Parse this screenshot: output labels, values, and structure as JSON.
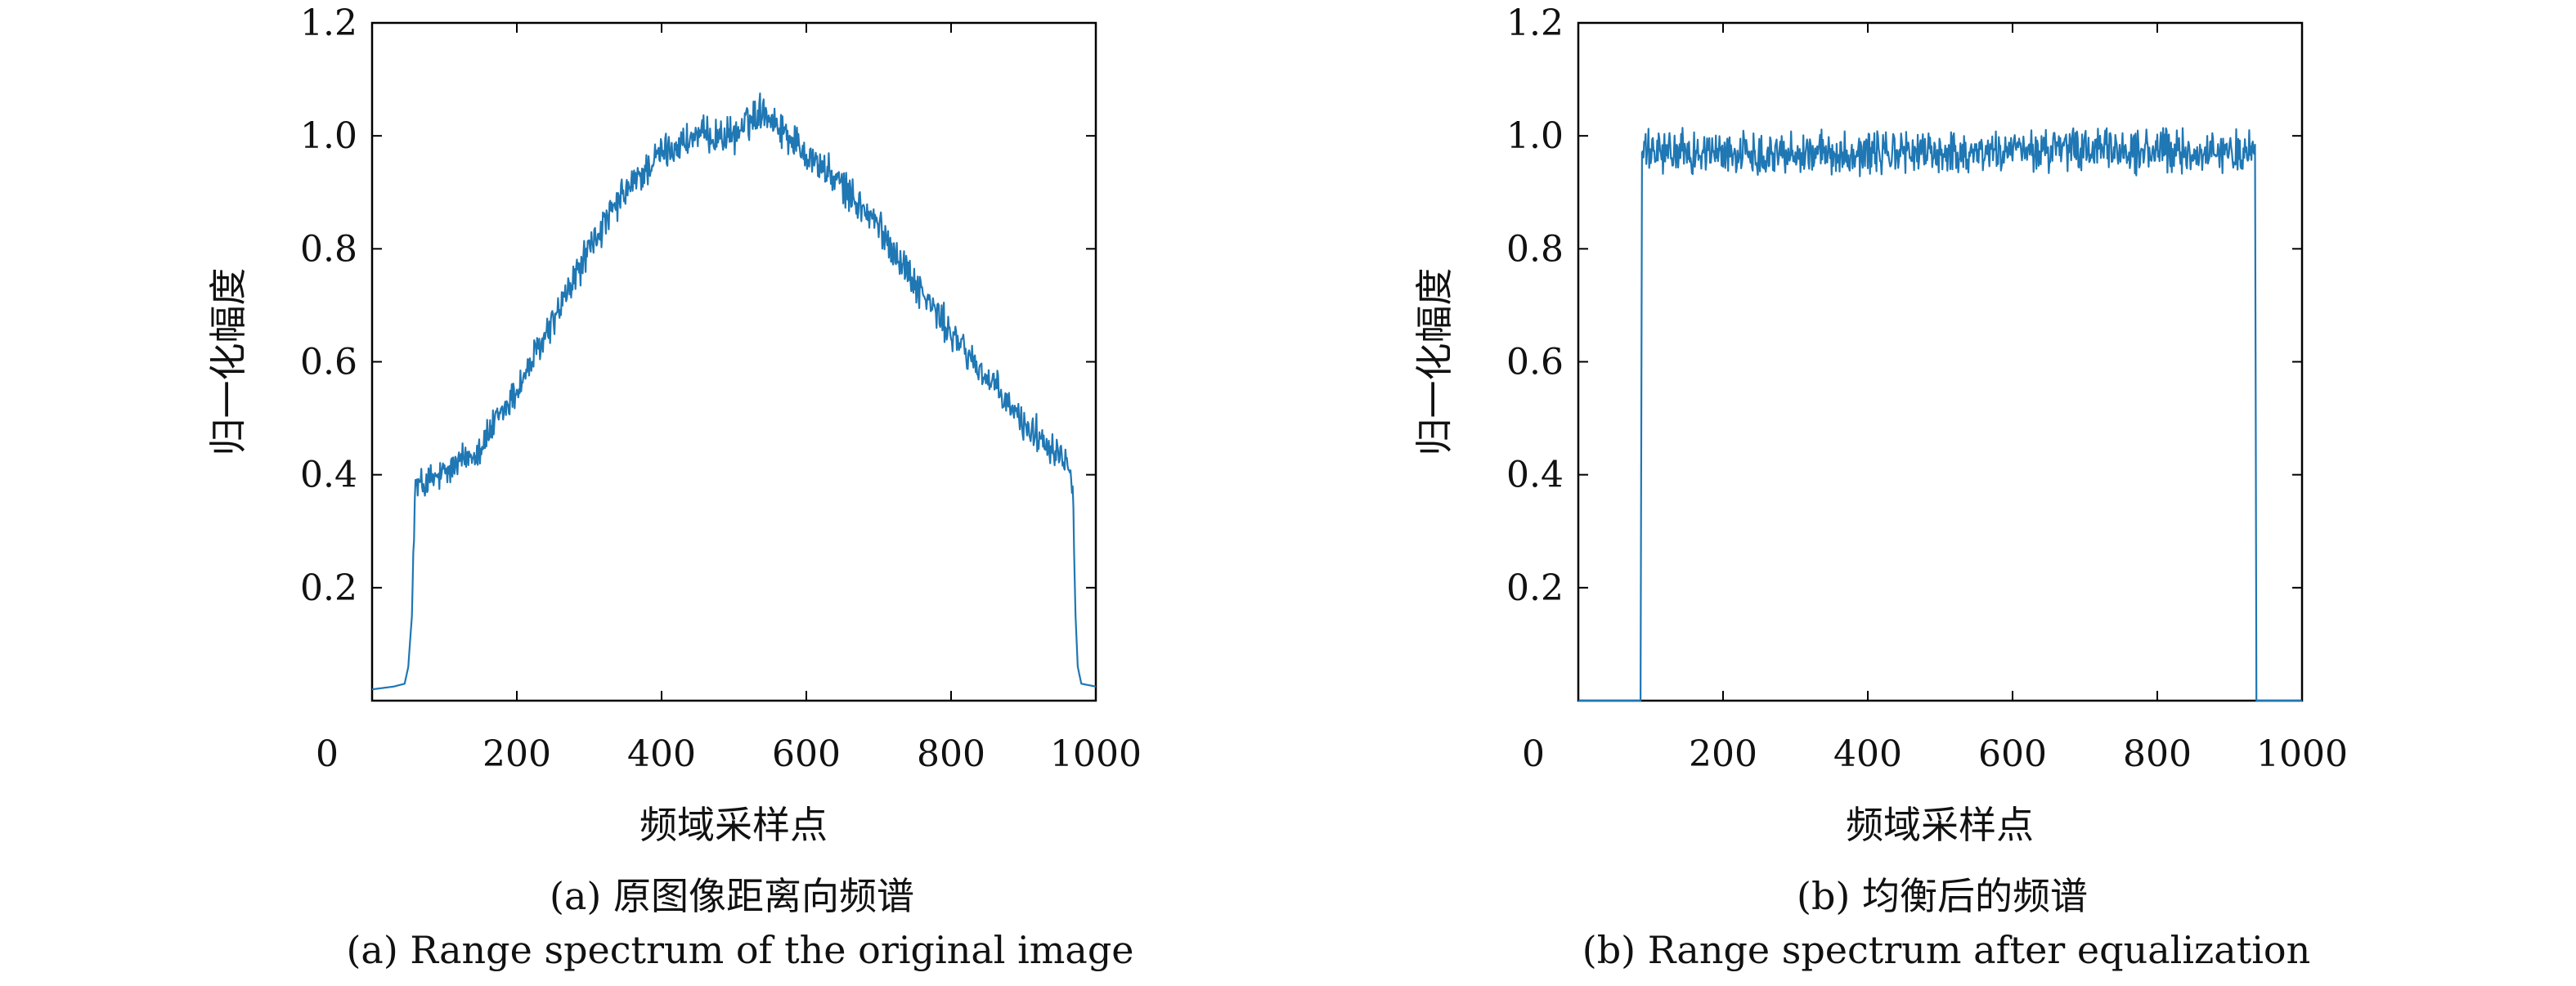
{
  "chart_data": [
    {
      "type": "line",
      "caption_cn": "(a) 原图像距离向频谱",
      "caption_en": "(a) Range spectrum of the original image",
      "xlabel": "频域采样点",
      "ylabel": "归一化幅度",
      "xlim": [
        0,
        1000
      ],
      "ylim": [
        0,
        1.2
      ],
      "xticks": [
        0,
        200,
        400,
        600,
        800,
        1000
      ],
      "yticks": [
        0.2,
        0.4,
        0.6,
        0.8,
        1.0,
        1.2
      ],
      "grid": false,
      "line_color": "#1f77b4",
      "noise_amplitude": 0.025,
      "series": [
        {
          "x": [
            0,
            30,
            45,
            50,
            55,
            58,
            60,
            65,
            100,
            150,
            200,
            250,
            300,
            350,
            400,
            450,
            500,
            540,
            560,
            600,
            650,
            700,
            750,
            800,
            850,
            900,
            950,
            960,
            965,
            968,
            972,
            975,
            980,
            1000
          ],
          "y": [
            0.02,
            0.025,
            0.03,
            0.06,
            0.15,
            0.32,
            0.38,
            0.38,
            0.4,
            0.45,
            0.55,
            0.67,
            0.8,
            0.9,
            0.97,
            1.0,
            1.0,
            1.05,
            1.02,
            0.97,
            0.91,
            0.84,
            0.74,
            0.65,
            0.57,
            0.49,
            0.44,
            0.43,
            0.42,
            0.38,
            0.15,
            0.06,
            0.03,
            0.025
          ]
        }
      ]
    },
    {
      "type": "line",
      "caption_cn": "(b) 均衡后的频谱",
      "caption_en": "(b) Range spectrum after equalization",
      "xlabel": "频域采样点",
      "ylabel": "归一化幅度",
      "xlim": [
        0,
        1000
      ],
      "ylim": [
        0,
        1.2
      ],
      "xticks": [
        0,
        200,
        400,
        600,
        800,
        1000
      ],
      "yticks": [
        0.2,
        0.4,
        0.6,
        0.8,
        1.0,
        1.2
      ],
      "grid": false,
      "line_color": "#1f77b4",
      "noise_amplitude": 0.03,
      "series": [
        {
          "x": [
            0,
            86,
            88,
            90,
            150,
            300,
            500,
            700,
            900,
            935,
            937,
            940,
            1000
          ],
          "y": [
            0.0,
            0.0,
            0.97,
            0.97,
            0.97,
            0.97,
            0.97,
            0.975,
            0.97,
            0.97,
            0.0,
            0.0,
            0.0
          ]
        }
      ]
    }
  ]
}
